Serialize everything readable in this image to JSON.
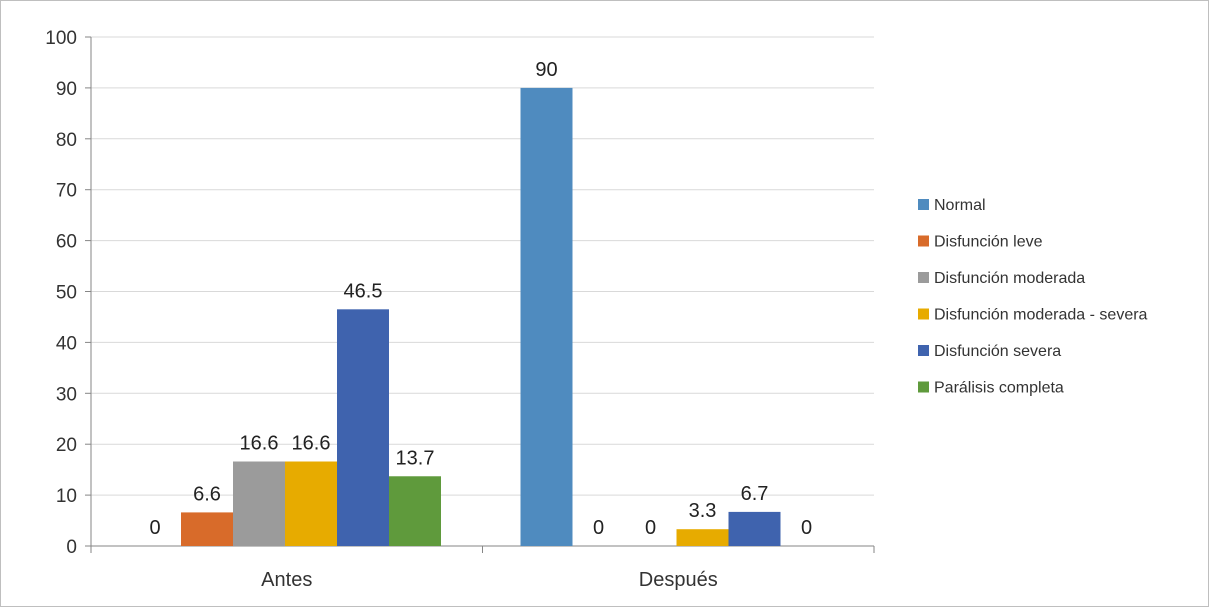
{
  "chart_data": {
    "type": "bar",
    "categories": [
      "Antes",
      "Después"
    ],
    "series": [
      {
        "name": "Normal",
        "color": "#4f8bbf",
        "values": [
          0,
          90
        ]
      },
      {
        "name": "Disfunción leve",
        "color": "#d86b2a",
        "values": [
          6.6,
          0
        ]
      },
      {
        "name": "Disfunción moderada",
        "color": "#9b9b9b",
        "values": [
          16.6,
          0
        ]
      },
      {
        "name": "Disfunción moderada - severa",
        "color": "#e7ab00",
        "values": [
          16.6,
          3.3
        ]
      },
      {
        "name": "Disfunción severa",
        "color": "#3f63ae",
        "values": [
          46.5,
          6.7
        ]
      },
      {
        "name": "Parálisis completa",
        "color": "#5f9a3c",
        "values": [
          13.7,
          0
        ]
      }
    ],
    "ylim": [
      0,
      100
    ],
    "yticks": [
      "0",
      "10",
      "20",
      "30",
      "40",
      "50",
      "60",
      "70",
      "80",
      "90",
      "100"
    ],
    "grid": true,
    "legend_position": "right",
    "title": "",
    "xlabel": "",
    "ylabel": ""
  }
}
